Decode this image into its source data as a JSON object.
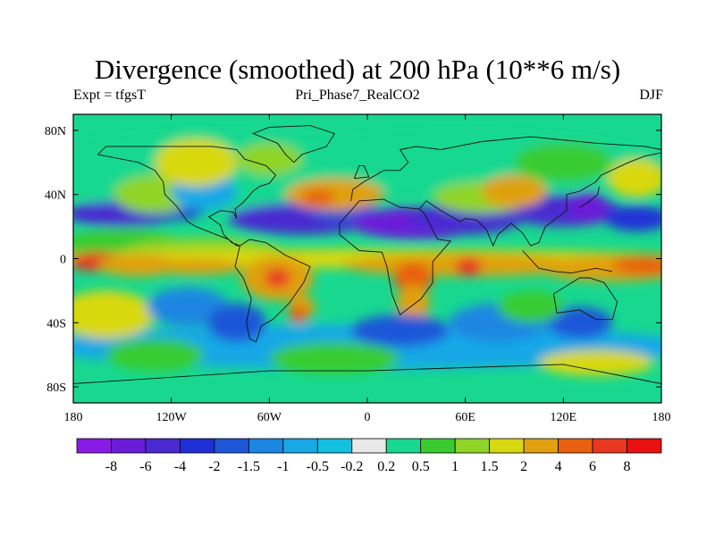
{
  "chart_data": {
    "type": "heatmap",
    "title": "Divergence (smoothed) at 200 hPa (10**6 m/s)",
    "subtitle_left": "Expt = tfgsT",
    "subtitle_center": "Pri_Phase7_RealCO2",
    "subtitle_right": "DJF",
    "x_ticks": [
      "180",
      "120W",
      "60W",
      "0",
      "60E",
      "120E",
      "180"
    ],
    "x_tick_values": [
      -180,
      -120,
      -60,
      0,
      60,
      120,
      180
    ],
    "y_ticks": [
      "80N",
      "40N",
      "0",
      "40S",
      "80S"
    ],
    "y_tick_values": [
      80,
      40,
      0,
      -40,
      -80
    ],
    "xlim": [
      -180,
      180
    ],
    "ylim": [
      -90,
      90
    ],
    "colorbar": {
      "levels": [
        "-8",
        "-6",
        "-4",
        "-2",
        "-1.5",
        "-1",
        "-0.5",
        "-0.2",
        "0.2",
        "0.5",
        "1",
        "1.5",
        "2",
        "4",
        "6",
        "8"
      ],
      "colors": [
        "#8a1ae6",
        "#6a1cd8",
        "#4a2ad0",
        "#2030d8",
        "#1e56d8",
        "#1c86e2",
        "#18a8e6",
        "#12c0e0",
        "#e8e8e8",
        "#18d890",
        "#38cc30",
        "#90d428",
        "#d8d810",
        "#e0a010",
        "#e86010",
        "#e83820",
        "#e81010"
      ]
    },
    "features": [
      {
        "name": "equatorial-pacific-max",
        "lon": -165,
        "lat": -3,
        "value": 6
      },
      {
        "name": "east-pacific-band",
        "lon": -110,
        "lat": -5,
        "value": 4
      },
      {
        "name": "south-america-max",
        "lon": -55,
        "lat": -12,
        "value": 6
      },
      {
        "name": "africa-max",
        "lon": 28,
        "lat": -12,
        "value": 4
      },
      {
        "name": "indian-ocean-max",
        "lon": 60,
        "lat": -5,
        "value": 6
      },
      {
        "name": "west-pacific-band",
        "lon": 150,
        "lat": -8,
        "value": 4
      },
      {
        "name": "north-pacific-min",
        "lon": -150,
        "lat": 25,
        "value": -4
      },
      {
        "name": "north-atlantic-min",
        "lon": -40,
        "lat": 25,
        "value": -4
      },
      {
        "name": "north-africa-min",
        "lon": 30,
        "lat": 20,
        "value": -6
      },
      {
        "name": "asia-min",
        "lon": 130,
        "lat": 30,
        "value": -6
      },
      {
        "name": "atlantic-north-max",
        "lon": -20,
        "lat": 40,
        "value": 2
      },
      {
        "name": "southern-ocean-max",
        "lon": 140,
        "lat": -65,
        "value": 1.5
      }
    ]
  }
}
